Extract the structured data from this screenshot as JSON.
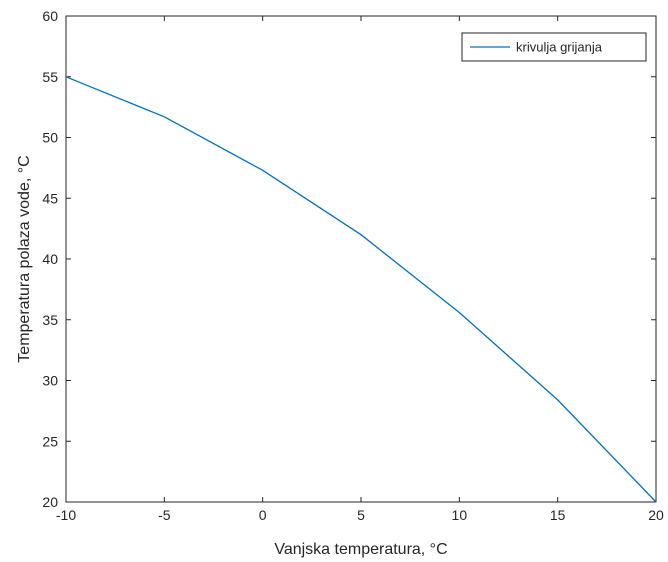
{
  "chart_data": {
    "type": "line",
    "title": "",
    "xlabel": "Vanjska temperatura, °C",
    "ylabel": "Temperatura polaza vode, °C",
    "xlim": [
      -10,
      20
    ],
    "ylim": [
      20,
      60
    ],
    "xticks": [
      -10,
      -5,
      0,
      5,
      10,
      15,
      20
    ],
    "yticks": [
      20,
      25,
      30,
      35,
      40,
      45,
      50,
      55,
      60
    ],
    "grid": false,
    "legend_position": "top-right",
    "series": [
      {
        "name": "krivulja grijanja",
        "color": "#0072bd",
        "x": [
          -10,
          -5,
          0,
          5,
          10,
          15,
          20
        ],
        "y": [
          55.0,
          51.7,
          47.3,
          42.0,
          35.6,
          28.4,
          20.0
        ]
      }
    ]
  }
}
